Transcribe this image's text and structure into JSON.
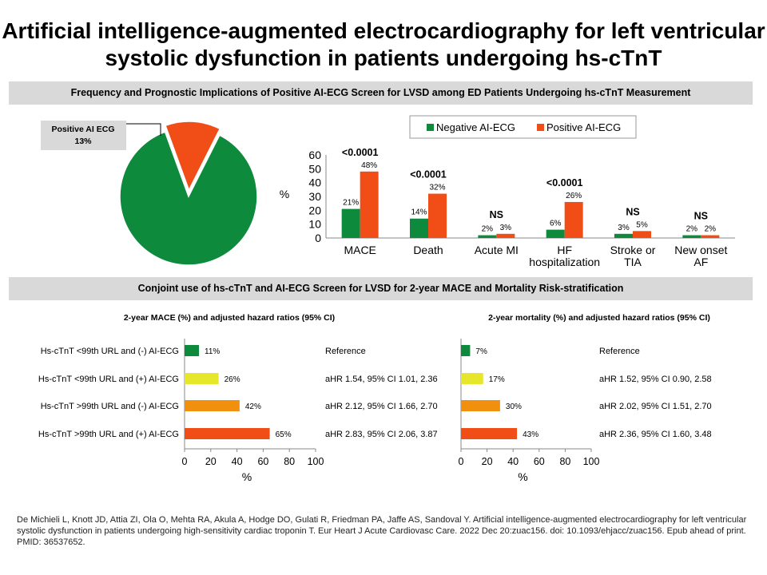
{
  "title": "Artificial intelligence-augmented electrocardiography for left ventricular systolic dysfunction in patients undergoing hs-cTnT",
  "section1_title": "Frequency and Prognostic Implications of Positive AI-ECG Screen for LVSD among ED Patients Undergoing hs-cTnT Measurement",
  "section2_title": "Conjoint use of hs-cTnT and AI-ECG Screen for LVSD for 2-year MACE and Mortality Risk-stratification",
  "citation": "De Michieli L, Knott JD, Attia ZI, Ola O, Mehta RA, Akula A, Hodge DO, Gulati R, Friedman PA, Jaffe AS, Sandoval Y. Artificial intelligence-augmented electrocardiography for left ventricular systolic dysfunction in patients undergoing high-sensitivity cardiac troponin T. Eur Heart J Acute Cardiovasc Care. 2022 Dec 20:zuac156. doi: 10.1093/ehjacc/zuac156. Epub ahead of print. PMID: 36537652.",
  "colors": {
    "green": "#0e8a3d",
    "orange": "#f04e16",
    "yellow": "#e6e62a",
    "amber": "#f0900e"
  },
  "chart_data": [
    {
      "type": "pie",
      "slices": [
        {
          "label": "Positive AI ECG",
          "value_label": "13%",
          "value": 13,
          "color": "#f04e16"
        },
        {
          "label": "",
          "value_label": "",
          "value": 87,
          "color": "#0e8a3d"
        }
      ]
    },
    {
      "type": "bar",
      "categories": [
        [
          "MACE"
        ],
        [
          "Death"
        ],
        [
          "Acute MI"
        ],
        [
          "HF",
          "hospitalization"
        ],
        [
          "Stroke or",
          "TIA"
        ],
        [
          "New onset",
          "AF"
        ]
      ],
      "series": [
        {
          "name": "Negative AI-ECG",
          "color": "#0e8a3d",
          "values": [
            21,
            14,
            2,
            6,
            3,
            2
          ],
          "labels": [
            "21%",
            "14%",
            "2%",
            "6%",
            "3%",
            "2%"
          ]
        },
        {
          "name": "Positive AI-ECG",
          "color": "#f04e16",
          "values": [
            48,
            32,
            3,
            26,
            5,
            2
          ],
          "labels": [
            "48%",
            "32%",
            "3%",
            "26%",
            "5%",
            "2%"
          ]
        }
      ],
      "significance": [
        "<0.0001",
        "<0.0001",
        "NS",
        "<0.0001",
        "NS",
        "NS"
      ],
      "ylabel": "%",
      "ylim": [
        0,
        60
      ],
      "yticks": [
        0,
        10,
        20,
        30,
        40,
        50,
        60
      ],
      "legend_position": "top"
    },
    {
      "type": "bar",
      "orientation": "horizontal",
      "title": "2-year MACE (%) and adjusted hazard ratios (95% CI)",
      "categories": [
        "Hs-cTnT <99th URL and (-) AI-ECG",
        "Hs-cTnT <99th URL and (+) AI-ECG",
        "Hs-cTnT >99th URL and (-) AI-ECG",
        "Hs-cTnT >99th URL and (+) AI-ECG"
      ],
      "values": [
        11,
        26,
        42,
        65
      ],
      "labels": [
        "11%",
        "26%",
        "42%",
        "65%"
      ],
      "colors": [
        "#0e8a3d",
        "#e6e62a",
        "#f0900e",
        "#f04e16"
      ],
      "annotations": [
        "Reference",
        "aHR 1.54, 95% CI 1.01, 2.36",
        "aHR 2.12, 95% CI 1.66, 2.70",
        "aHR 2.83, 95% CI 2.06, 3.87"
      ],
      "xlabel": "%",
      "xlim": [
        0,
        100
      ],
      "xticks": [
        0,
        20,
        40,
        60,
        80,
        100
      ]
    },
    {
      "type": "bar",
      "orientation": "horizontal",
      "title": "2-year mortality (%) and adjusted hazard ratios (95% CI)",
      "values": [
        7,
        17,
        30,
        43
      ],
      "labels": [
        "7%",
        "17%",
        "30%",
        "43%"
      ],
      "colors": [
        "#0e8a3d",
        "#e6e62a",
        "#f0900e",
        "#f04e16"
      ],
      "annotations": [
        "Reference",
        "aHR 1.52, 95% CI 0.90, 2.58",
        "aHR 2.02, 95% CI 1.51, 2.70",
        "aHR 2.36, 95% CI 1.60, 3.48"
      ],
      "xlabel": "%",
      "xlim": [
        0,
        100
      ],
      "xticks": [
        0,
        20,
        40,
        60,
        80,
        100
      ]
    }
  ]
}
